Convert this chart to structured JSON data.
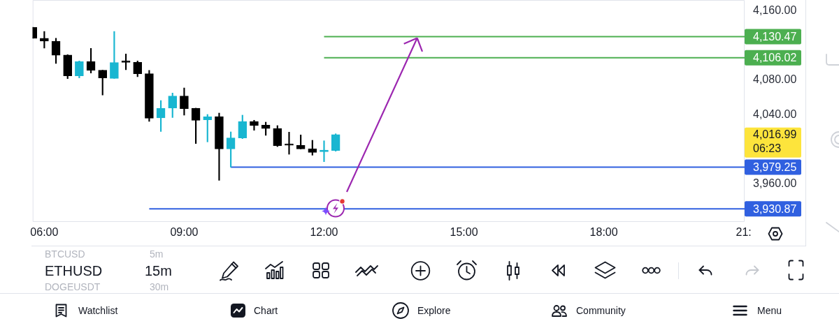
{
  "chart_data": {
    "type": "candlestick",
    "xlim": [
      5.75,
      21.02
    ],
    "xticks": [
      {
        "value": 6,
        "label": "06:00"
      },
      {
        "value": 9,
        "label": "09:00"
      },
      {
        "value": 12,
        "label": "12:00"
      },
      {
        "value": 15,
        "label": "15:00"
      },
      {
        "value": 18,
        "label": "18:00"
      },
      {
        "value": 21,
        "label": "21:"
      }
    ],
    "ylim": [
      3915.8,
      4172.9
    ],
    "yticks": [
      {
        "value": 3960,
        "label": "3,960.00"
      },
      {
        "value": 4040,
        "label": "4,040.00"
      },
      {
        "value": 4080,
        "label": "4,080.00"
      },
      {
        "value": 4160,
        "label": "4,160.00"
      }
    ],
    "marker": "none",
    "series": [
      {
        "type": "candlestick",
        "x": [
          5.75,
          6,
          6.25,
          6.5,
          6.75,
          7,
          7.25,
          7.5,
          7.75,
          8,
          8.25,
          8.5,
          8.75,
          9,
          9.25,
          9.5,
          9.75,
          10,
          10.25,
          10.5,
          10.75,
          11,
          11.25,
          11.5,
          11.75,
          12,
          12.25
        ],
        "ohlc": [
          [
            4141.4,
            4141.4,
            4128.5,
            4128.5
          ],
          [
            4128.5,
            4136.5,
            4117.1,
            4125.2
          ],
          [
            4125.2,
            4128.5,
            4099.3,
            4108.8
          ],
          [
            4109.1,
            4109.6,
            4081.8,
            4085.1
          ],
          [
            4085.1,
            4102.3,
            4082.6,
            4101.5
          ],
          [
            4101.5,
            4116.9,
            4088.3,
            4091.5
          ],
          [
            4091.5,
            4091.5,
            4062.9,
            4082.6
          ],
          [
            4082.1,
            4136.5,
            4082.1,
            4100.4
          ],
          [
            4101.7,
            4110.4,
            4092.1,
            4100.7
          ],
          [
            4100.7,
            4102.3,
            4084.0,
            4087.5
          ],
          [
            4087.5,
            4091.3,
            4032.2,
            4036.0
          ],
          [
            4036.3,
            4056.5,
            4020.6,
            4047.3
          ],
          [
            4047.6,
            4065.1,
            4036.8,
            4061.6
          ],
          [
            4061.6,
            4071.0,
            4039.5,
            4047.0
          ],
          [
            4047.6,
            4047.6,
            4006.6,
            4033.6
          ],
          [
            4034.1,
            4040.3,
            4008.5,
            4037.6
          ],
          [
            4037.9,
            4041.9,
            3964.0,
            4000.4
          ],
          [
            4000.4,
            4020.1,
            3979.25,
            4013.1
          ],
          [
            4013.1,
            4039.5,
            4012.3,
            4032.2
          ],
          [
            4032.2,
            4033.6,
            4022.0,
            4027.4
          ],
          [
            4027.9,
            4031.4,
            4016.1,
            4023.9
          ],
          [
            4024.1,
            4027.4,
            4003.1,
            4003.9
          ],
          [
            4004.5,
            4019.8,
            3994.2,
            4004.5
          ],
          [
            4004.5,
            4016.6,
            4000.4,
            4000.4
          ],
          [
            4000.4,
            4010.4,
            3993.1,
            3996.4
          ],
          [
            3997.2,
            4009.8,
            3985.6,
            3999.1
          ],
          [
            3998.5,
            4017.9,
            3997.7,
            4016.99
          ]
        ],
        "colors": [
          "#000000",
          "#000000",
          "#000000",
          "#000000",
          "#19b6d1",
          "#000000",
          "#000000",
          "#19b6d1",
          "#000000",
          "#000000",
          "#000000",
          "#19b6d1",
          "#19b6d1",
          "#000000",
          "#000000",
          "#19b6d1",
          "#000000",
          "#19b6d1",
          "#19b6d1",
          "#000000",
          "#000000",
          "#000000",
          "#000000",
          "#000000",
          "#000000",
          "#19b6d1",
          "#19b6d1"
        ]
      },
      {
        "type": "line",
        "color": "#4caf50",
        "x": [
          12,
          21.02
        ],
        "values": [
          4130.47,
          4130.47
        ],
        "value_labels": [
          null,
          "4,130.47"
        ]
      },
      {
        "type": "line",
        "color": "#4caf50",
        "x": [
          12,
          21.02
        ],
        "values": [
          4106.02,
          4106.02
        ],
        "value_labels": [
          null,
          "4,106.02"
        ]
      },
      {
        "type": "line",
        "color": "#3060e0",
        "x": [
          10,
          21.02
        ],
        "values": [
          3979.25,
          3979.25
        ],
        "value_labels": [
          null,
          "3,979.25"
        ]
      },
      {
        "type": "line",
        "color": "#3060e0",
        "x": [
          8.25,
          21.02
        ],
        "values": [
          3930.87,
          3930.87
        ],
        "value_labels": [
          null,
          "3,930.87"
        ]
      }
    ],
    "annotations": [
      "4,016.99",
      "06:23",
      "BTCUSD",
      "5m",
      "ETHUSD",
      "15m",
      "DOGEUSDT",
      "30m",
      "Watchlist",
      "Chart",
      "Explore",
      "Community",
      "Menu"
    ]
  }
}
